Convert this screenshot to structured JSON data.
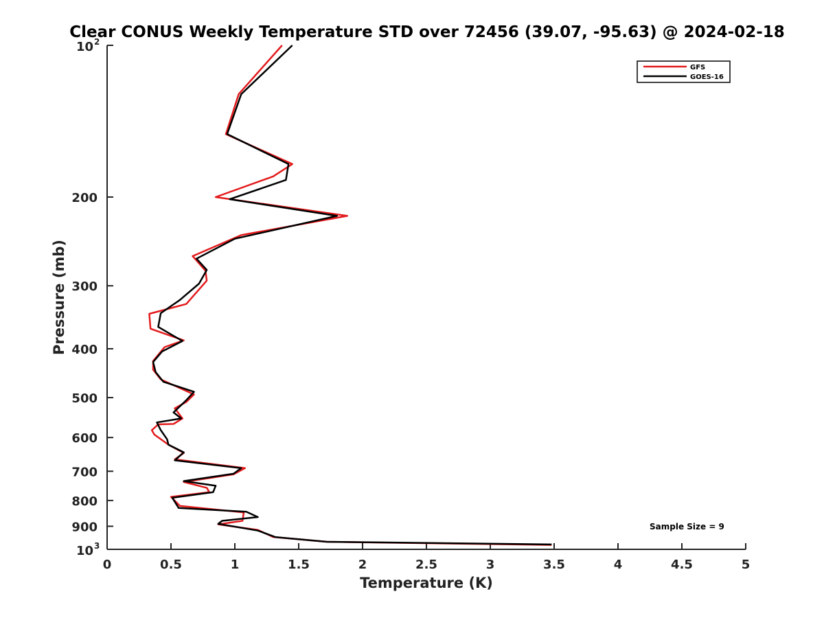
{
  "chart_data": {
    "type": "line",
    "title": "Clear CONUS Weekly Temperature STD over 72456 (39.07, -95.63) @ 2024-02-18",
    "xlabel": "Temperature (K)",
    "ylabel": "Pressure (mb)",
    "xlim": [
      0,
      5
    ],
    "ylim": [
      100,
      1000
    ],
    "y_scale": "log",
    "y_reversed": true,
    "x_ticks": [
      0,
      0.5,
      1,
      1.5,
      2,
      2.5,
      3,
      3.5,
      4,
      4.5,
      5
    ],
    "x_tick_labels": [
      "0",
      "0.5",
      "1",
      "1.5",
      "2",
      "2.5",
      "3",
      "3.5",
      "4",
      "4.5",
      "5"
    ],
    "y_ticks": [
      {
        "value": 100,
        "label": "10",
        "exp": "2"
      },
      {
        "value": 200,
        "label": "200"
      },
      {
        "value": 300,
        "label": "300"
      },
      {
        "value": 400,
        "label": "400"
      },
      {
        "value": 500,
        "label": "500"
      },
      {
        "value": 600,
        "label": "600"
      },
      {
        "value": 700,
        "label": "700"
      },
      {
        "value": 800,
        "label": "800"
      },
      {
        "value": 900,
        "label": "900"
      },
      {
        "value": 1000,
        "label": "10",
        "exp": "3"
      }
    ],
    "grid": false,
    "legend_position": "top-right",
    "annotation": "Sample Size = 9",
    "series": [
      {
        "name": "GFS",
        "color": "#e31a1c",
        "points": [
          [
            1.37,
            100
          ],
          [
            1.03,
            125
          ],
          [
            0.93,
            150
          ],
          [
            1.45,
            172
          ],
          [
            1.3,
            182
          ],
          [
            0.85,
            200
          ],
          [
            1.88,
            218
          ],
          [
            1.05,
            238
          ],
          [
            0.67,
            262
          ],
          [
            0.77,
            280
          ],
          [
            0.78,
            293
          ],
          [
            0.62,
            326
          ],
          [
            0.33,
            341
          ],
          [
            0.34,
            365
          ],
          [
            0.6,
            385
          ],
          [
            0.45,
            397
          ],
          [
            0.36,
            423
          ],
          [
            0.36,
            440
          ],
          [
            0.42,
            460
          ],
          [
            0.68,
            493
          ],
          [
            0.62,
            510
          ],
          [
            0.53,
            525
          ],
          [
            0.59,
            550
          ],
          [
            0.52,
            564
          ],
          [
            0.4,
            565
          ],
          [
            0.35,
            580
          ],
          [
            0.37,
            592
          ],
          [
            0.43,
            607
          ],
          [
            0.48,
            620
          ],
          [
            0.6,
            644
          ],
          [
            0.53,
            663
          ],
          [
            1.08,
            690
          ],
          [
            0.99,
            710
          ],
          [
            0.6,
            735
          ],
          [
            0.78,
            755
          ],
          [
            0.8,
            770
          ],
          [
            0.5,
            787
          ],
          [
            0.57,
            820
          ],
          [
            1.07,
            845
          ],
          [
            1.06,
            878
          ],
          [
            0.87,
            892
          ],
          [
            1.18,
            915
          ],
          [
            1.3,
            945
          ],
          [
            1.72,
            966
          ],
          [
            3.48,
            980
          ]
        ]
      },
      {
        "name": "GOES-16",
        "color": "#000000",
        "points": [
          [
            1.45,
            100
          ],
          [
            1.05,
            125
          ],
          [
            0.94,
            150
          ],
          [
            1.42,
            172
          ],
          [
            1.4,
            185
          ],
          [
            0.96,
            202
          ],
          [
            1.8,
            218
          ],
          [
            1.0,
            242
          ],
          [
            0.7,
            265
          ],
          [
            0.78,
            279
          ],
          [
            0.72,
            297
          ],
          [
            0.57,
            320
          ],
          [
            0.42,
            340
          ],
          [
            0.4,
            362
          ],
          [
            0.59,
            386
          ],
          [
            0.43,
            405
          ],
          [
            0.36,
            425
          ],
          [
            0.38,
            445
          ],
          [
            0.44,
            465
          ],
          [
            0.68,
            487
          ],
          [
            0.62,
            506
          ],
          [
            0.52,
            535
          ],
          [
            0.58,
            550
          ],
          [
            0.39,
            560
          ],
          [
            0.42,
            580
          ],
          [
            0.47,
            605
          ],
          [
            0.48,
            620
          ],
          [
            0.6,
            642
          ],
          [
            0.53,
            666
          ],
          [
            1.05,
            690
          ],
          [
            0.99,
            708
          ],
          [
            0.6,
            732
          ],
          [
            0.85,
            748
          ],
          [
            0.83,
            770
          ],
          [
            0.51,
            790
          ],
          [
            0.56,
            828
          ],
          [
            1.09,
            842
          ],
          [
            1.18,
            863
          ],
          [
            0.9,
            878
          ],
          [
            0.87,
            890
          ],
          [
            1.18,
            918
          ],
          [
            1.32,
            946
          ],
          [
            1.72,
            966
          ],
          [
            3.48,
            978
          ]
        ]
      }
    ]
  }
}
